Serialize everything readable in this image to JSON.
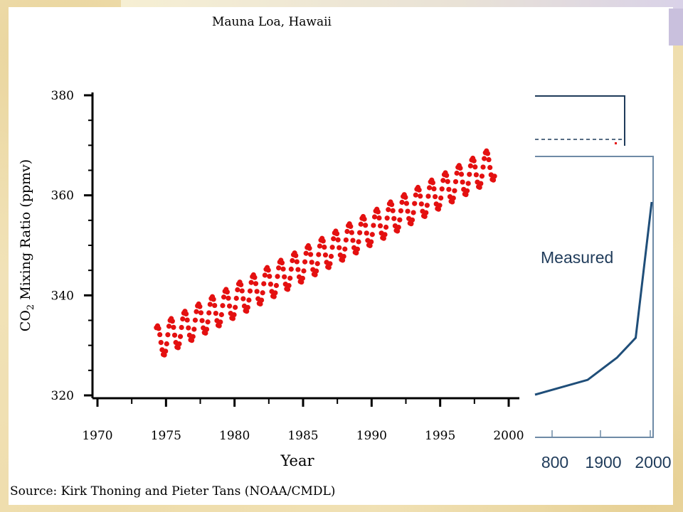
{
  "colors": {
    "background": "#f1e3b9",
    "panel": "#ffffff",
    "series_red": "#e41010",
    "inset_line": "#1f4e79",
    "axis": "#000000"
  },
  "chart_data": [
    {
      "type": "line",
      "title": "Mauna Loa, Hawaii",
      "xlabel": "Year",
      "ylabel": "CO2 Mixing Ratio (ppmv)",
      "xlim": [
        1970,
        2000
      ],
      "ylim": [
        320,
        380
      ],
      "xticks": [
        "1970",
        "1975",
        "1980",
        "1985",
        "1990",
        "1995",
        "2000"
      ],
      "yticks": [
        "320",
        "340",
        "360",
        "380"
      ],
      "series": [
        {
          "trend_start": [
            1974.3,
            330.5
          ],
          "trend_end": [
            1999.0,
            366.5
          ],
          "seasonal_amplitude": 3.3,
          "points_per_year": 12
        }
      ],
      "source": "Source: Kirk Thoning and Pieter Tans (NOAA/CMDL)"
    },
    {
      "type": "line",
      "label": "Measured",
      "xticks": [
        "800",
        "1900",
        "2000"
      ],
      "x": [
        1800,
        1880,
        1935,
        1970,
        2000
      ],
      "y": [
        292,
        298,
        307,
        315,
        370
      ]
    }
  ]
}
